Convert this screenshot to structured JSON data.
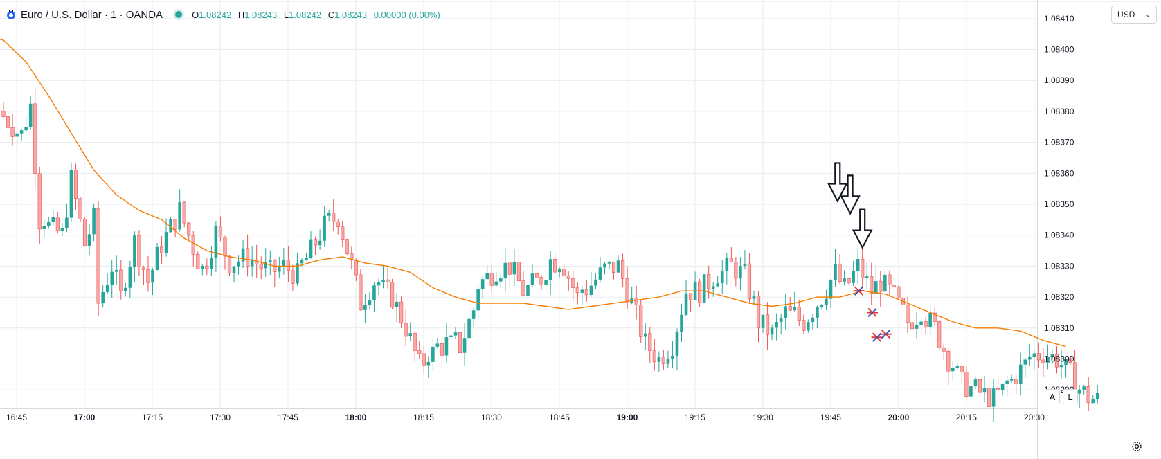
{
  "header": {
    "symbol": "Euro / U.S. Dollar · 1 · OANDA",
    "o_key": "O",
    "o": "1.08242",
    "h_key": "H",
    "h": "1.08243",
    "l_key": "L",
    "l": "1.08242",
    "c_key": "C",
    "c": "1.08243",
    "change": "0.00000 (0.00%)"
  },
  "currency": {
    "label": "USD"
  },
  "buttons": {
    "auto": "A",
    "log": "L"
  },
  "icons": [
    "tradingview-logo-icon",
    "live-status-dot-icon",
    "chevron-down-icon",
    "gear-icon"
  ],
  "colors": {
    "up": "#26a69a",
    "down": "#ef5350",
    "ma": "#f57c00",
    "grid": "#e6ecf0"
  },
  "chart_data": {
    "type": "candlestick",
    "title": "Euro / U.S. Dollar · 1 · OANDA",
    "ylim": [
      1.08284,
      1.08416
    ],
    "xlim_minutes": [
      -5,
      645
    ],
    "y_ticks": [
      "1.08410",
      "1.08400",
      "1.08390",
      "1.08380",
      "1.08370",
      "1.08360",
      "1.08350",
      "1.08340",
      "1.08330",
      "1.08320",
      "1.08310",
      "1.08300",
      "1.08290"
    ],
    "x_ticks": [
      {
        "label": "16:45",
        "min": 0,
        "bold": false
      },
      {
        "label": "17:00",
        "min": 15,
        "bold": true
      },
      {
        "label": "17:15",
        "min": 30,
        "bold": false
      },
      {
        "label": "17:30",
        "min": 45,
        "bold": false
      },
      {
        "label": "17:45",
        "min": 60,
        "bold": false
      },
      {
        "label": "18:00",
        "min": 75,
        "bold": true
      },
      {
        "label": "18:15",
        "min": 90,
        "bold": false
      },
      {
        "label": "18:30",
        "min": 105,
        "bold": false
      },
      {
        "label": "18:45",
        "min": 120,
        "bold": false
      },
      {
        "label": "19:00",
        "min": 135,
        "bold": true
      },
      {
        "label": "19:15",
        "min": 150,
        "bold": false
      },
      {
        "label": "19:30",
        "min": 165,
        "bold": false
      },
      {
        "label": "19:45",
        "min": 180,
        "bold": false
      },
      {
        "label": "20:00",
        "min": 195,
        "bold": true
      },
      {
        "label": "20:15",
        "min": 210,
        "bold": false
      },
      {
        "label": "20:30",
        "min": 225,
        "bold": false
      }
    ],
    "candle_start": "16:44",
    "key_points": [
      [
        0,
        1.0838
      ],
      [
        5,
        1.08372
      ],
      [
        7,
        1.08382
      ],
      [
        9,
        1.08345
      ],
      [
        14,
        1.0834
      ],
      [
        16,
        1.08358
      ],
      [
        19,
        1.08337
      ],
      [
        21,
        1.08345
      ],
      [
        22,
        1.08318
      ],
      [
        25,
        1.0833
      ],
      [
        27,
        1.0832
      ],
      [
        30,
        1.08338
      ],
      [
        33,
        1.08325
      ],
      [
        36,
        1.08337
      ],
      [
        40,
        1.08348
      ],
      [
        42,
        1.0834
      ],
      [
        45,
        1.08328
      ],
      [
        48,
        1.08341
      ],
      [
        51,
        1.08331
      ],
      [
        55,
        1.08333
      ],
      [
        60,
        1.08328
      ],
      [
        63,
        1.0833
      ],
      [
        66,
        1.08327
      ],
      [
        69,
        1.08335
      ],
      [
        72,
        1.08343
      ],
      [
        75,
        1.08346
      ],
      [
        78,
        1.0833
      ],
      [
        80,
        1.08318
      ],
      [
        83,
        1.08325
      ],
      [
        87,
        1.0832
      ],
      [
        90,
        1.0831
      ],
      [
        93,
        1.08298
      ],
      [
        96,
        1.08302
      ],
      [
        99,
        1.08305
      ],
      [
        102,
        1.08304
      ],
      [
        105,
        1.08316
      ],
      [
        106,
        1.08324
      ],
      [
        110,
        1.08329
      ],
      [
        113,
        1.0833
      ],
      [
        116,
        1.08322
      ],
      [
        120,
        1.08326
      ],
      [
        122,
        1.08332
      ],
      [
        125,
        1.0833
      ],
      [
        128,
        1.0832
      ],
      [
        131,
        1.08324
      ],
      [
        134,
        1.08329
      ],
      [
        137,
        1.0833
      ],
      [
        140,
        1.08318
      ],
      [
        143,
        1.08305
      ],
      [
        146,
        1.083
      ],
      [
        149,
        1.08305
      ],
      [
        152,
        1.08322
      ],
      [
        155,
        1.08322
      ],
      [
        158,
        1.08326
      ],
      [
        162,
        1.0833
      ],
      [
        165,
        1.08327
      ],
      [
        168,
        1.08312
      ],
      [
        171,
        1.08308
      ],
      [
        174,
        1.08315
      ],
      [
        178,
        1.08312
      ],
      [
        182,
        1.0832
      ],
      [
        185,
        1.08328
      ],
      [
        187,
        1.08322
      ],
      [
        190,
        1.0833
      ],
      [
        193,
        1.08322
      ],
      [
        195,
        1.08325
      ],
      [
        198,
        1.0832
      ],
      [
        201,
        1.08312
      ],
      [
        204,
        1.08315
      ],
      [
        207,
        1.0831
      ],
      [
        210,
        1.083
      ],
      [
        213,
        1.08292
      ],
      [
        216,
        1.0829
      ],
      [
        220,
        1.08287
      ],
      [
        224,
        1.08293
      ],
      [
        228,
        1.083
      ],
      [
        231,
        1.08302
      ],
      [
        234,
        1.083
      ],
      [
        237,
        1.08295
      ],
      [
        240,
        1.08288
      ],
      [
        242,
        1.08287
      ]
    ],
    "moving_average": [
      [
        -5,
        1.08405
      ],
      [
        0,
        1.08403
      ],
      [
        5,
        1.08396
      ],
      [
        10,
        1.08385
      ],
      [
        15,
        1.08373
      ],
      [
        20,
        1.08361
      ],
      [
        25,
        1.08353
      ],
      [
        30,
        1.08348
      ],
      [
        35,
        1.08345
      ],
      [
        40,
        1.08339
      ],
      [
        45,
        1.08335
      ],
      [
        50,
        1.08333
      ],
      [
        55,
        1.08332
      ],
      [
        60,
        1.0833
      ],
      [
        65,
        1.0833
      ],
      [
        70,
        1.08332
      ],
      [
        75,
        1.08333
      ],
      [
        80,
        1.08331
      ],
      [
        85,
        1.0833
      ],
      [
        90,
        1.08328
      ],
      [
        95,
        1.08323
      ],
      [
        100,
        1.0832
      ],
      [
        105,
        1.08318
      ],
      [
        110,
        1.08318
      ],
      [
        115,
        1.08318
      ],
      [
        120,
        1.08317
      ],
      [
        125,
        1.08316
      ],
      [
        130,
        1.08317
      ],
      [
        135,
        1.08318
      ],
      [
        140,
        1.08319
      ],
      [
        145,
        1.0832
      ],
      [
        150,
        1.08322
      ],
      [
        155,
        1.08322
      ],
      [
        160,
        1.0832
      ],
      [
        165,
        1.08318
      ],
      [
        170,
        1.08317
      ],
      [
        175,
        1.08318
      ],
      [
        180,
        1.0832
      ],
      [
        185,
        1.0832
      ],
      [
        190,
        1.08322
      ],
      [
        195,
        1.08321
      ],
      [
        200,
        1.08318
      ],
      [
        205,
        1.08315
      ],
      [
        210,
        1.08312
      ],
      [
        215,
        1.0831
      ],
      [
        220,
        1.0831
      ],
      [
        225,
        1.08309
      ],
      [
        230,
        1.08306
      ],
      [
        235,
        1.08304
      ]
    ],
    "annotations": {
      "arrows": [
        {
          "time_min": 195.5,
          "price": 1.08351
        },
        {
          "time_min": 198.3,
          "price": 1.08347
        },
        {
          "time_min": 201.0,
          "price": 1.08336
        }
      ],
      "stars": [
        {
          "time_min": 200.0,
          "price": 1.08322
        },
        {
          "time_min": 203.0,
          "price": 1.08315
        },
        {
          "time_min": 204.0,
          "price": 1.08307
        },
        {
          "time_min": 206.0,
          "price": 1.08308
        }
      ]
    }
  }
}
